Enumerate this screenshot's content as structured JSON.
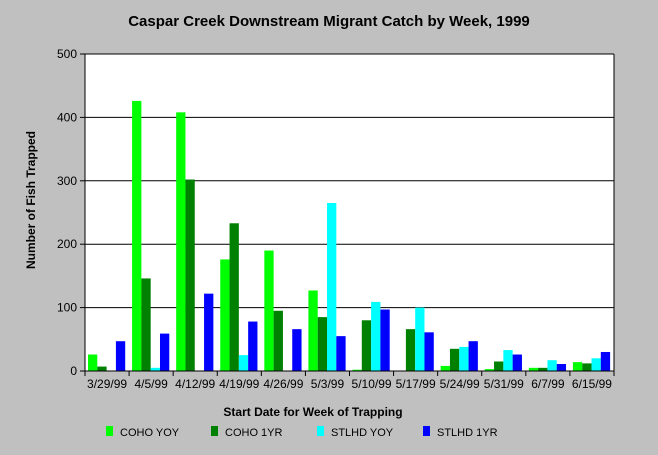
{
  "chart_data": {
    "type": "bar",
    "title": "Caspar Creek Downstream Migrant Catch by Week, 1999",
    "xlabel": "Start Date for Week of Trapping",
    "ylabel": "Number of Fish Trapped",
    "ylim": [
      0,
      500
    ],
    "yticks": [
      "0",
      "100",
      "200",
      "300",
      "400",
      "500"
    ],
    "grid": true,
    "legend_position": "bottom",
    "categories": [
      "3/29/99",
      "4/5/99",
      "4/12/99",
      "4/19/99",
      "4/26/99",
      "5/3/99",
      "5/10/99",
      "5/17/99",
      "5/24/99",
      "5/31/99",
      "6/7/99",
      "6/15/99"
    ],
    "series": [
      {
        "name": "COHO YOY",
        "color": "#00ff00",
        "values": [
          26,
          426,
          408,
          176,
          190,
          127,
          2,
          0,
          8,
          3,
          5,
          14
        ]
      },
      {
        "name": "COHO 1YR",
        "color": "#008000",
        "values": [
          7,
          146,
          302,
          233,
          95,
          85,
          80,
          66,
          35,
          15,
          5,
          12
        ]
      },
      {
        "name": "STLHD YOY",
        "color": "#00ffff",
        "values": [
          0,
          5,
          0,
          25,
          0,
          265,
          109,
          100,
          38,
          33,
          17,
          20
        ]
      },
      {
        "name": "STLHD 1YR",
        "color": "#0000ff",
        "values": [
          47,
          59,
          122,
          78,
          66,
          55,
          97,
          61,
          47,
          26,
          11,
          30
        ]
      }
    ]
  }
}
